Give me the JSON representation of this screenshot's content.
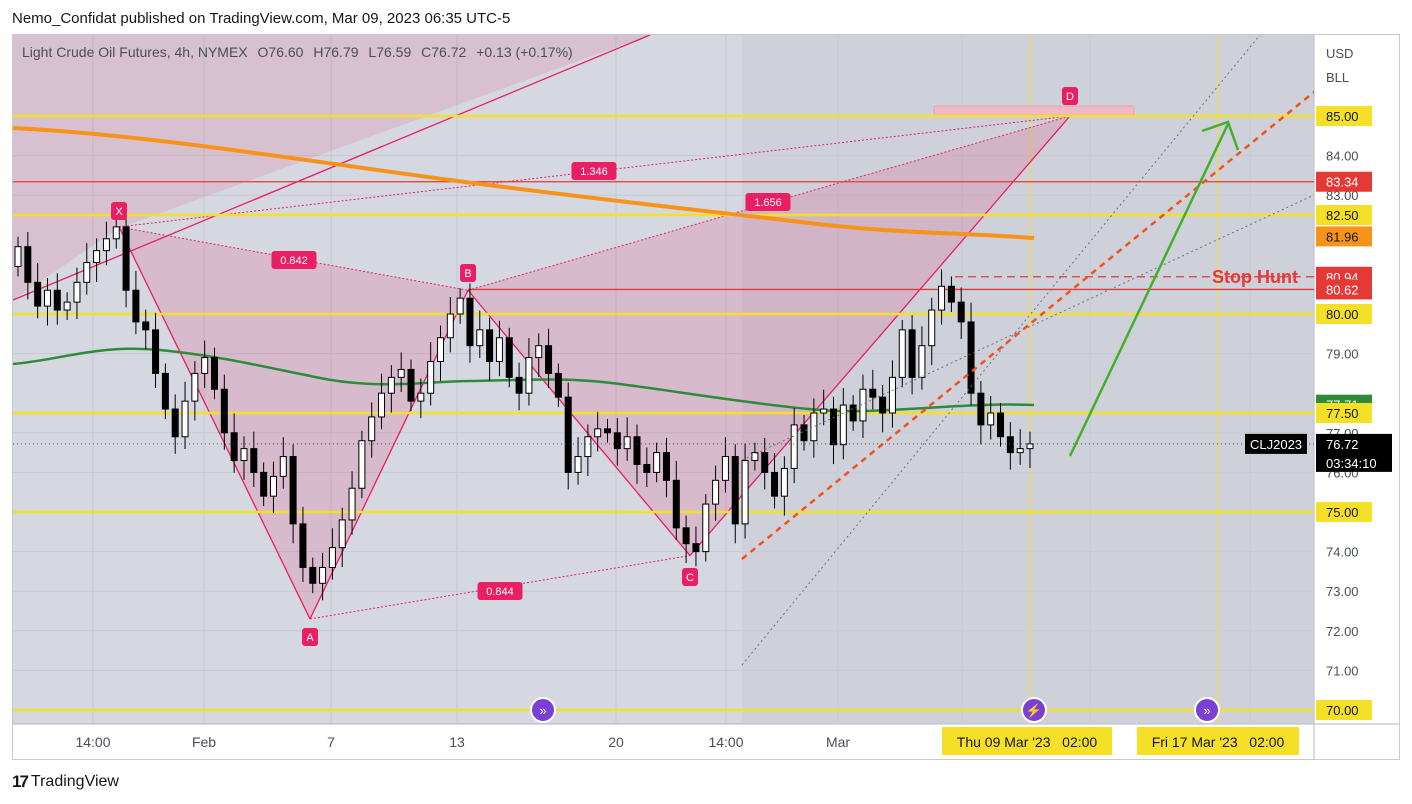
{
  "header": {
    "publish_line": "Nemo_Confidat published on TradingView.com, Mar 09, 2023 06:35 UTC-5"
  },
  "instrument": {
    "name": "Light Crude Oil Futures, 4h, NYMEX",
    "open": "O76.60",
    "high": "H76.79",
    "low": "L76.59",
    "close": "C76.72",
    "change": "+0.13 (+0.17%)"
  },
  "currency": {
    "unit": "USD",
    "scale": "BLL"
  },
  "footer": {
    "brand": "TradingView"
  },
  "colors": {
    "background": "#d5d8e0",
    "yellow_level": "#f5e027",
    "red_level": "#e53935",
    "harmonic_pink": "#e91e63",
    "ma_orange": "#f7931a",
    "ma_green": "#2e8b3a",
    "arrow_green": "#43b02a",
    "trend_red": "#f4511e",
    "candle_up": "#ffffff",
    "candle_down": "#000000"
  },
  "chart_data": {
    "type": "candlestick",
    "title": "Light Crude Oil Futures, 4h, NYMEX",
    "ylim": [
      70.0,
      86.2
    ],
    "price_axis_ticks": [
      "71.00",
      "72.00",
      "73.00",
      "74.00",
      "76.00",
      "77.00",
      "79.00",
      "83.00",
      "84.00"
    ],
    "time_axis_ticks": [
      "14:00",
      "Feb",
      "7",
      "13",
      "20",
      "14:00",
      "Mar"
    ],
    "price_labels": [
      {
        "text": "85.00",
        "price": 85.0,
        "bg": "#f5e027",
        "fg": "#131722"
      },
      {
        "text": "83.34",
        "price": 83.34,
        "bg": "#e53935",
        "fg": "#ffffff"
      },
      {
        "text": "82.50",
        "price": 82.5,
        "bg": "#f5e027",
        "fg": "#131722"
      },
      {
        "text": "81.96",
        "price": 81.96,
        "bg": "#f7931a",
        "fg": "#131722"
      },
      {
        "text": "80.94",
        "price": 80.94,
        "bg": "#e53935",
        "fg": "#ffffff"
      },
      {
        "text": "80.62",
        "price": 80.62,
        "bg": "#e53935",
        "fg": "#ffffff"
      },
      {
        "text": "80.00",
        "price": 80.0,
        "bg": "#f5e027",
        "fg": "#131722"
      },
      {
        "text": "77.71",
        "price": 77.71,
        "bg": "#2e8b3a",
        "fg": "#ffffff"
      },
      {
        "text": "77.50",
        "price": 77.5,
        "bg": "#f5e027",
        "fg": "#131722"
      },
      {
        "text": "75.00",
        "price": 75.0,
        "bg": "#f5e027",
        "fg": "#131722"
      },
      {
        "text": "70.00",
        "price": 70.0,
        "bg": "#f5e027",
        "fg": "#131722"
      }
    ],
    "last_price": {
      "symbol": "CLJ2023",
      "price": "76.72",
      "countdown": "03:34:10"
    },
    "date_labels": [
      "Thu 09 Mar '23   02:00",
      "Fri 17 Mar '23   02:00"
    ],
    "horizontal_levels": [
      {
        "price": 85.0,
        "color": "yellow"
      },
      {
        "price": 83.34,
        "color": "red"
      },
      {
        "price": 82.5,
        "color": "yellow"
      },
      {
        "price": 80.62,
        "color": "red"
      },
      {
        "price": 80.0,
        "color": "yellow"
      },
      {
        "price": 77.5,
        "color": "yellow"
      },
      {
        "price": 75.0,
        "color": "yellow"
      },
      {
        "price": 70.0,
        "color": "yellow"
      }
    ],
    "annotations": {
      "stop_hunt": "Stop Hunt",
      "stop_hunt_price": 80.94,
      "harmonic_points": [
        {
          "label": "X",
          "price": 82.2
        },
        {
          "label": "A",
          "price": 72.3
        },
        {
          "label": "B",
          "price": 80.6
        },
        {
          "label": "C",
          "price": 73.9
        },
        {
          "label": "D",
          "price": 85.0
        }
      ],
      "ratios": [
        "0.842",
        "1.346",
        "1.656",
        "0.844"
      ]
    },
    "closes": [
      81.7,
      80.8,
      80.2,
      80.6,
      80.1,
      80.3,
      80.8,
      81.3,
      81.6,
      81.9,
      82.2,
      80.6,
      79.8,
      79.6,
      78.5,
      77.6,
      76.9,
      77.8,
      78.5,
      78.9,
      78.1,
      77.0,
      76.3,
      76.6,
      76.0,
      75.4,
      75.9,
      76.4,
      74.7,
      73.6,
      73.2,
      73.6,
      74.1,
      74.8,
      75.6,
      76.8,
      77.4,
      78.0,
      78.4,
      78.6,
      77.8,
      78.0,
      78.8,
      79.4,
      80.0,
      80.4,
      79.2,
      79.6,
      78.8,
      79.4,
      78.4,
      78.0,
      78.9,
      79.2,
      78.5,
      77.9,
      76.0,
      76.4,
      76.9,
      77.1,
      77.0,
      76.6,
      76.9,
      76.2,
      76.0,
      76.5,
      75.8,
      74.6,
      74.2,
      74.0,
      75.2,
      75.8,
      76.4,
      74.7,
      76.3,
      76.5,
      76.0,
      75.4,
      76.1,
      77.2,
      76.8,
      77.5,
      77.6,
      76.7,
      77.7,
      77.3,
      78.1,
      77.9,
      77.5,
      78.4,
      79.6,
      78.4,
      79.2,
      80.1,
      80.7,
      80.3,
      79.8,
      78.0,
      77.2,
      77.5,
      76.9,
      76.5,
      76.6,
      76.72
    ]
  }
}
